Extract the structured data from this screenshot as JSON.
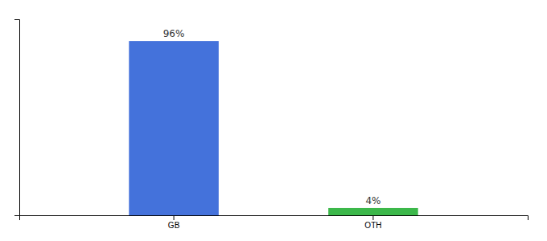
{
  "chart_data": {
    "type": "bar",
    "categories": [
      "GB",
      "OTH"
    ],
    "values": [
      96,
      4
    ],
    "value_labels": [
      "96%",
      "4%"
    ],
    "colors": [
      "#4472DB",
      "#3CB84A"
    ],
    "ylim": [
      0,
      108
    ],
    "data_labels": true,
    "tick_labels": "x"
  }
}
